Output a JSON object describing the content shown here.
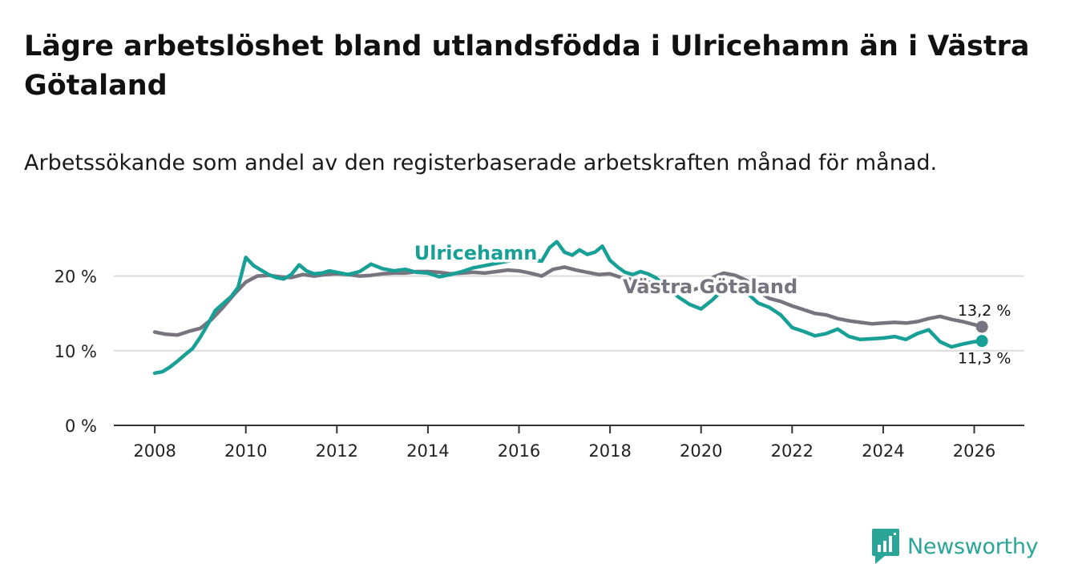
{
  "title": "Lägre arbetslöshet bland utlandsfödda i Ulricehamn än i Västra Götaland",
  "subtitle": "Arbetssökande som andel av den registerbaserade arbetskraften månad för månad.",
  "brand": {
    "name": "Newsworthy",
    "icon": "bar-chart-logo-icon",
    "color": "#2ba598"
  },
  "chart_data": {
    "type": "line",
    "title": "Lägre arbetslöshet bland utlandsfödda i Ulricehamn än i Västra Götaland",
    "ylabel": "",
    "xlabel": "",
    "ylim": [
      0,
      25
    ],
    "xlim": [
      2007.1,
      2027.1
    ],
    "y_ticks": [
      0,
      10,
      20
    ],
    "y_tick_labels": [
      "0 %",
      "10 %",
      "20 %"
    ],
    "x_ticks": [
      2008,
      2010,
      2012,
      2014,
      2016,
      2018,
      2020,
      2022,
      2024,
      2026
    ],
    "x_tick_labels": [
      "2008",
      "2010",
      "2012",
      "2014",
      "2016",
      "2018",
      "2020",
      "2022",
      "2024",
      "2026"
    ],
    "grid": "horizontal",
    "series": [
      {
        "name": "Västra Götaland",
        "color": "#77737f",
        "end_label": "13,2 %",
        "x": [
          2008.0,
          2008.25,
          2008.5,
          2008.75,
          2009.0,
          2009.25,
          2009.5,
          2009.75,
          2010.0,
          2010.25,
          2010.5,
          2010.75,
          2011.0,
          2011.25,
          2011.5,
          2011.75,
          2012.0,
          2012.25,
          2012.5,
          2012.75,
          2013.0,
          2013.25,
          2013.5,
          2013.75,
          2014.0,
          2014.25,
          2014.5,
          2014.75,
          2015.0,
          2015.25,
          2015.5,
          2015.75,
          2016.0,
          2016.25,
          2016.5,
          2016.75,
          2017.0,
          2017.25,
          2017.5,
          2017.75,
          2018.0,
          2018.25,
          2018.5,
          2018.75,
          2019.0,
          2019.25,
          2019.5,
          2019.75,
          2020.0,
          2020.25,
          2020.5,
          2020.75,
          2021.0,
          2021.25,
          2021.5,
          2021.75,
          2022.0,
          2022.25,
          2022.5,
          2022.75,
          2023.0,
          2023.25,
          2023.5,
          2023.75,
          2024.0,
          2024.25,
          2024.5,
          2024.75,
          2025.0,
          2025.25,
          2025.5,
          2025.75,
          2026.0,
          2026.17
        ],
        "values": [
          12.5,
          12.2,
          12.1,
          12.6,
          13.0,
          14.2,
          15.8,
          17.6,
          19.2,
          20.0,
          20.1,
          19.9,
          19.8,
          20.2,
          20.0,
          20.2,
          20.3,
          20.2,
          20.0,
          20.1,
          20.3,
          20.4,
          20.4,
          20.6,
          20.6,
          20.5,
          20.3,
          20.4,
          20.5,
          20.4,
          20.6,
          20.8,
          20.7,
          20.4,
          20.0,
          20.9,
          21.2,
          20.8,
          20.5,
          20.2,
          20.3,
          19.8,
          19.5,
          19.3,
          19.0,
          18.6,
          18.3,
          18.0,
          18.5,
          19.8,
          20.4,
          20.1,
          19.4,
          18.0,
          17.0,
          16.6,
          16.0,
          15.5,
          15.0,
          14.8,
          14.3,
          14.0,
          13.8,
          13.6,
          13.7,
          13.8,
          13.7,
          13.9,
          14.3,
          14.6,
          14.2,
          13.9,
          13.5,
          13.2
        ]
      },
      {
        "name": "Ulricehamn",
        "color": "#18a096",
        "end_label": "11,3 %",
        "x": [
          2008.0,
          2008.17,
          2008.33,
          2008.5,
          2008.67,
          2008.83,
          2009.0,
          2009.17,
          2009.33,
          2009.5,
          2009.67,
          2009.83,
          2010.0,
          2010.17,
          2010.33,
          2010.5,
          2010.67,
          2010.83,
          2011.0,
          2011.17,
          2011.33,
          2011.5,
          2011.67,
          2011.83,
          2012.0,
          2012.25,
          2012.5,
          2012.75,
          2013.0,
          2013.25,
          2013.5,
          2013.75,
          2014.0,
          2014.25,
          2014.5,
          2014.75,
          2015.0,
          2015.25,
          2015.5,
          2015.75,
          2016.0,
          2016.25,
          2016.5,
          2016.67,
          2016.83,
          2017.0,
          2017.17,
          2017.33,
          2017.5,
          2017.67,
          2017.83,
          2018.0,
          2018.17,
          2018.33,
          2018.5,
          2018.67,
          2018.83,
          2019.0,
          2019.25,
          2019.5,
          2019.75,
          2020.0,
          2020.25,
          2020.5,
          2020.75,
          2021.0,
          2021.25,
          2021.5,
          2021.75,
          2022.0,
          2022.25,
          2022.5,
          2022.75,
          2023.0,
          2023.25,
          2023.5,
          2023.75,
          2024.0,
          2024.25,
          2024.5,
          2024.75,
          2025.0,
          2025.25,
          2025.5,
          2025.75,
          2026.0,
          2026.17
        ],
        "values": [
          7.0,
          7.2,
          7.8,
          8.6,
          9.5,
          10.3,
          11.8,
          13.6,
          15.4,
          16.3,
          17.2,
          18.5,
          22.5,
          21.4,
          20.8,
          20.2,
          19.8,
          19.6,
          20.2,
          21.5,
          20.7,
          20.3,
          20.4,
          20.7,
          20.5,
          20.2,
          20.6,
          21.6,
          21.0,
          20.7,
          20.9,
          20.5,
          20.4,
          19.9,
          20.2,
          20.6,
          21.1,
          21.4,
          21.7,
          22.0,
          22.4,
          22.2,
          22.0,
          23.8,
          24.6,
          23.2,
          22.8,
          23.5,
          22.9,
          23.2,
          24.0,
          22.1,
          21.2,
          20.5,
          20.2,
          20.6,
          20.3,
          19.8,
          18.5,
          17.2,
          16.2,
          15.6,
          16.8,
          18.3,
          18.7,
          17.8,
          16.4,
          15.8,
          14.8,
          13.1,
          12.6,
          12.0,
          12.3,
          12.9,
          11.9,
          11.5,
          11.6,
          11.7,
          11.9,
          11.5,
          12.3,
          12.8,
          11.2,
          10.5,
          10.9,
          11.2,
          11.3
        ]
      }
    ]
  }
}
